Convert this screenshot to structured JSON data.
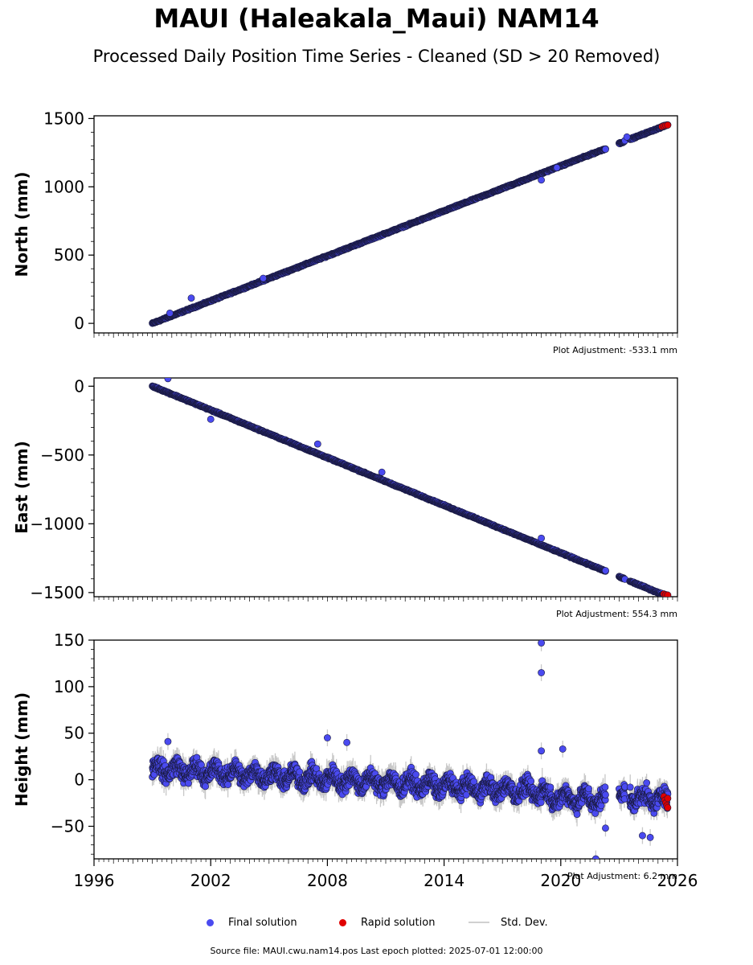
{
  "figure": {
    "title": "MAUI (Haleakala_Maui) NAM14",
    "subtitle": "Processed Daily Position Time Series - Cleaned (SD > 20 Removed)",
    "source": "Source file: MAUI.cwu.nam14.pos  Last epoch plotted: 2025-07-01 12:00:00"
  },
  "legend": {
    "final": "Final solution",
    "rapid": "Rapid solution",
    "std": "Std. Dev."
  },
  "colors": {
    "final": "#4a4af0",
    "final_edge": "#1a1a40",
    "rapid": "#e00000",
    "std": "#c8c8c8"
  },
  "chart_data": [
    {
      "type": "scatter",
      "ylabel": "North (mm)",
      "adjustment": "Plot Adjustment: -533.1 mm",
      "xlim": [
        1996,
        2026
      ],
      "ylim": [
        -70,
        1520
      ],
      "yticks": [
        0,
        500,
        1000,
        1500
      ],
      "ytick_labels": [
        "0",
        "500",
        "1000",
        "1500"
      ],
      "trend": {
        "start_year": 1999.0,
        "start_value": 0,
        "slope_per_year": 54.9
      },
      "segments": [
        [
          1999.0,
          2022.3
        ],
        [
          2023.0,
          2023.3
        ],
        [
          2023.55,
          2025.5
        ]
      ],
      "rapid": [
        [
          2025.2,
          1441
        ],
        [
          2025.3,
          1446
        ],
        [
          2025.4,
          1449
        ],
        [
          2025.5,
          1452
        ]
      ],
      "outliers": [
        [
          1999.9,
          75
        ],
        [
          2001.0,
          185
        ],
        [
          2004.7,
          330
        ],
        [
          2019.0,
          1050
        ],
        [
          2019.8,
          1140
        ],
        [
          2022.3,
          1275
        ],
        [
          2023.4,
          1365
        ]
      ],
      "std_points": []
    },
    {
      "type": "scatter",
      "ylabel": "East (mm)",
      "adjustment": "Plot Adjustment: 554.3 mm",
      "xlim": [
        1996,
        2026
      ],
      "ylim": [
        -1530,
        60
      ],
      "yticks": [
        0,
        -500,
        -1000,
        -1500
      ],
      "ytick_labels": [
        "0",
        "−500",
        "−1000",
        "−1500"
      ],
      "trend": {
        "start_year": 1999.0,
        "start_value": 0,
        "slope_per_year": -57.7
      },
      "segments": [
        [
          1999.0,
          2022.3
        ],
        [
          2023.0,
          2023.3
        ],
        [
          2023.55,
          2025.5
        ]
      ],
      "rapid": [
        [
          2025.3,
          -1510
        ],
        [
          2025.4,
          -1515
        ],
        [
          2025.5,
          -1518
        ]
      ],
      "outliers": [
        [
          1999.8,
          55
        ],
        [
          2002.0,
          -240
        ],
        [
          2007.5,
          -420
        ],
        [
          2010.8,
          -625
        ],
        [
          2019.0,
          -1105
        ],
        [
          2022.3,
          -1340
        ]
      ],
      "std_points": []
    },
    {
      "type": "scatter",
      "ylabel": "Height (mm)",
      "adjustment": "Plot Adjustment: 6.2 mm",
      "xlim": [
        1996,
        2026
      ],
      "ylim": [
        -85,
        150
      ],
      "yticks": [
        -50,
        0,
        50,
        100,
        150
      ],
      "ytick_labels": [
        "−50",
        "0",
        "50",
        "100",
        "150"
      ],
      "xticks": [
        1996,
        2002,
        2008,
        2014,
        2020,
        2026
      ],
      "xtick_labels": [
        "1996",
        "2002",
        "2008",
        "2014",
        "2020",
        "2026"
      ],
      "trend": {
        "start_year": 1999.0,
        "start_value": 12,
        "slope_per_year": -1.25
      },
      "segments": [
        [
          1999.0,
          2022.3
        ],
        [
          2023.0,
          2023.3
        ],
        [
          2023.55,
          2025.5
        ]
      ],
      "rapid": [
        [
          2025.3,
          -18
        ],
        [
          2025.35,
          -22
        ],
        [
          2025.4,
          -25
        ],
        [
          2025.45,
          -28
        ],
        [
          2025.5,
          -20
        ],
        [
          2025.5,
          -30
        ]
      ],
      "outliers": [
        [
          2019.0,
          147
        ],
        [
          2019.0,
          115
        ],
        [
          2008.0,
          45
        ],
        [
          2009.0,
          40
        ],
        [
          2019.0,
          31
        ],
        [
          2020.1,
          33
        ],
        [
          1999.8,
          41
        ],
        [
          2021.8,
          -85
        ],
        [
          2024.2,
          -60
        ],
        [
          2024.6,
          -62
        ],
        [
          2022.3,
          -52
        ]
      ],
      "std_points": []
    }
  ]
}
